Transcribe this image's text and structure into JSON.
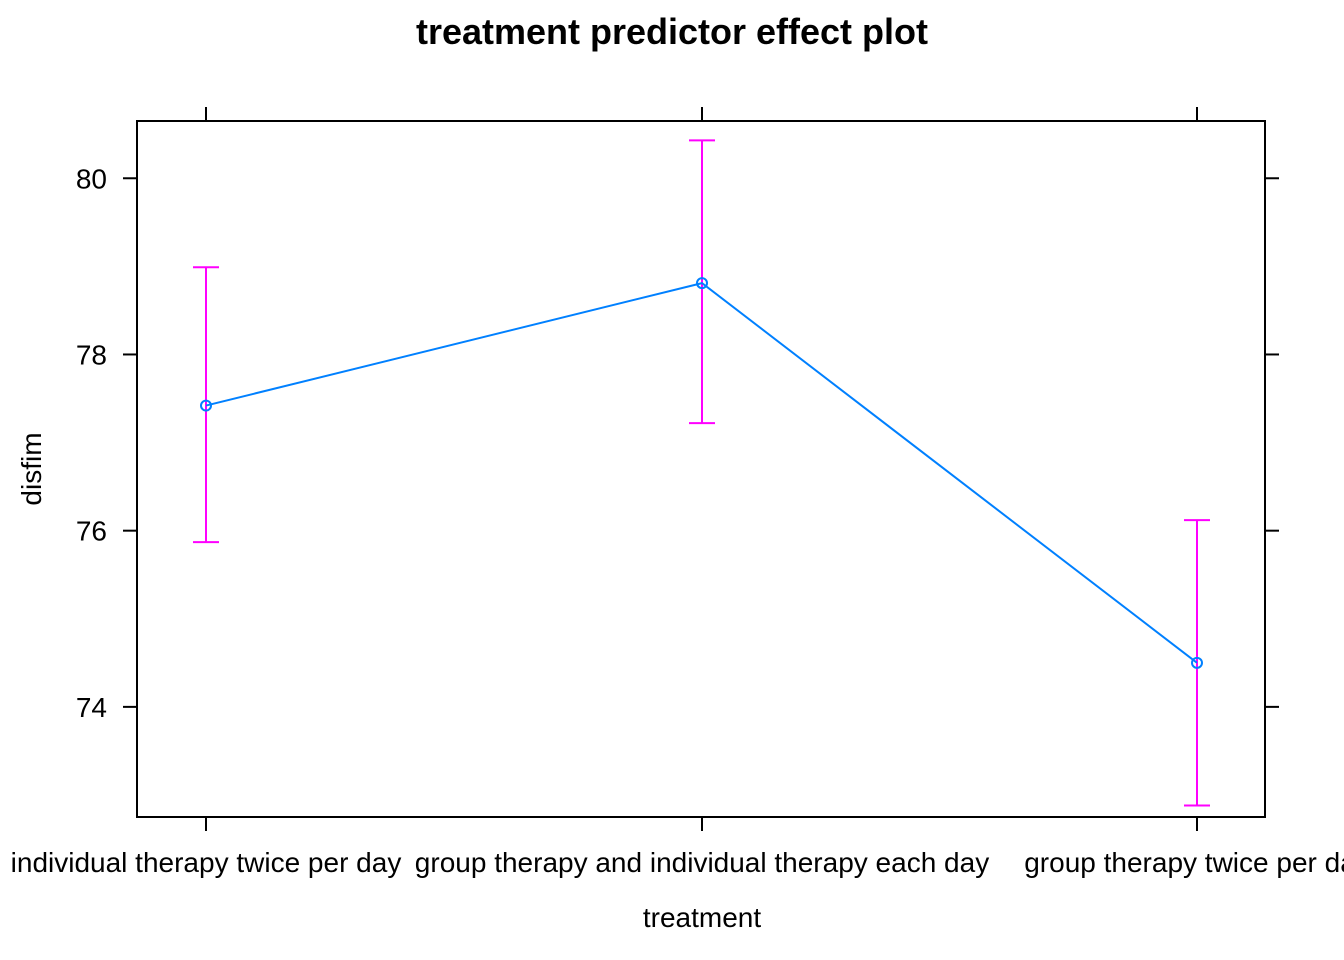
{
  "chart_data": {
    "type": "line",
    "title": "treatment predictor effect plot",
    "xlabel": "treatment",
    "ylabel": "disfim",
    "categories": [
      "individual therapy twice per day",
      "group therapy and individual therapy each day",
      "group therapy twice per day"
    ],
    "estimates": [
      77.42,
      78.81,
      74.5
    ],
    "lower": [
      75.87,
      77.22,
      72.88
    ],
    "upper": [
      78.99,
      80.43,
      76.12
    ],
    "ylim": [
      72.75,
      80.65
    ],
    "yticks": [
      74,
      76,
      78,
      80
    ],
    "grid": false,
    "colors": {
      "line": "#0080ff",
      "error_bars": "#ff00ff"
    }
  }
}
